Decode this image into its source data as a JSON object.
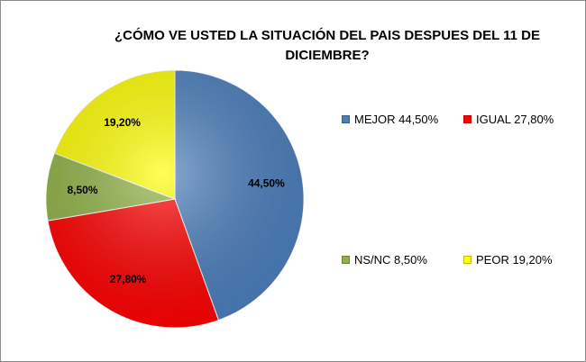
{
  "chart_data": {
    "type": "pie",
    "title": "¿CÓMO VE USTED LA SITUACIÓN DEL PAIS DESPUES DEL 11 DE DICIEMBRE?",
    "slices": [
      {
        "name": "MEJOR",
        "value": 44.5,
        "label": "44,50%",
        "legend": "MEJOR 44,50%",
        "color": "#4a7ebb"
      },
      {
        "name": "IGUAL",
        "value": 27.8,
        "label": "27,80%",
        "legend": "IGUAL 27,80%",
        "color": "#ff0000"
      },
      {
        "name": "NS/NC",
        "value": 8.5,
        "label": "8,50%",
        "legend": "NS/NC 8,50%",
        "color": "#8fb245"
      },
      {
        "name": "PEOR",
        "value": 19.2,
        "label": "19,20%",
        "legend": "PEOR 19,20%",
        "color": "#ffff00"
      }
    ],
    "legend_placement": "right"
  }
}
